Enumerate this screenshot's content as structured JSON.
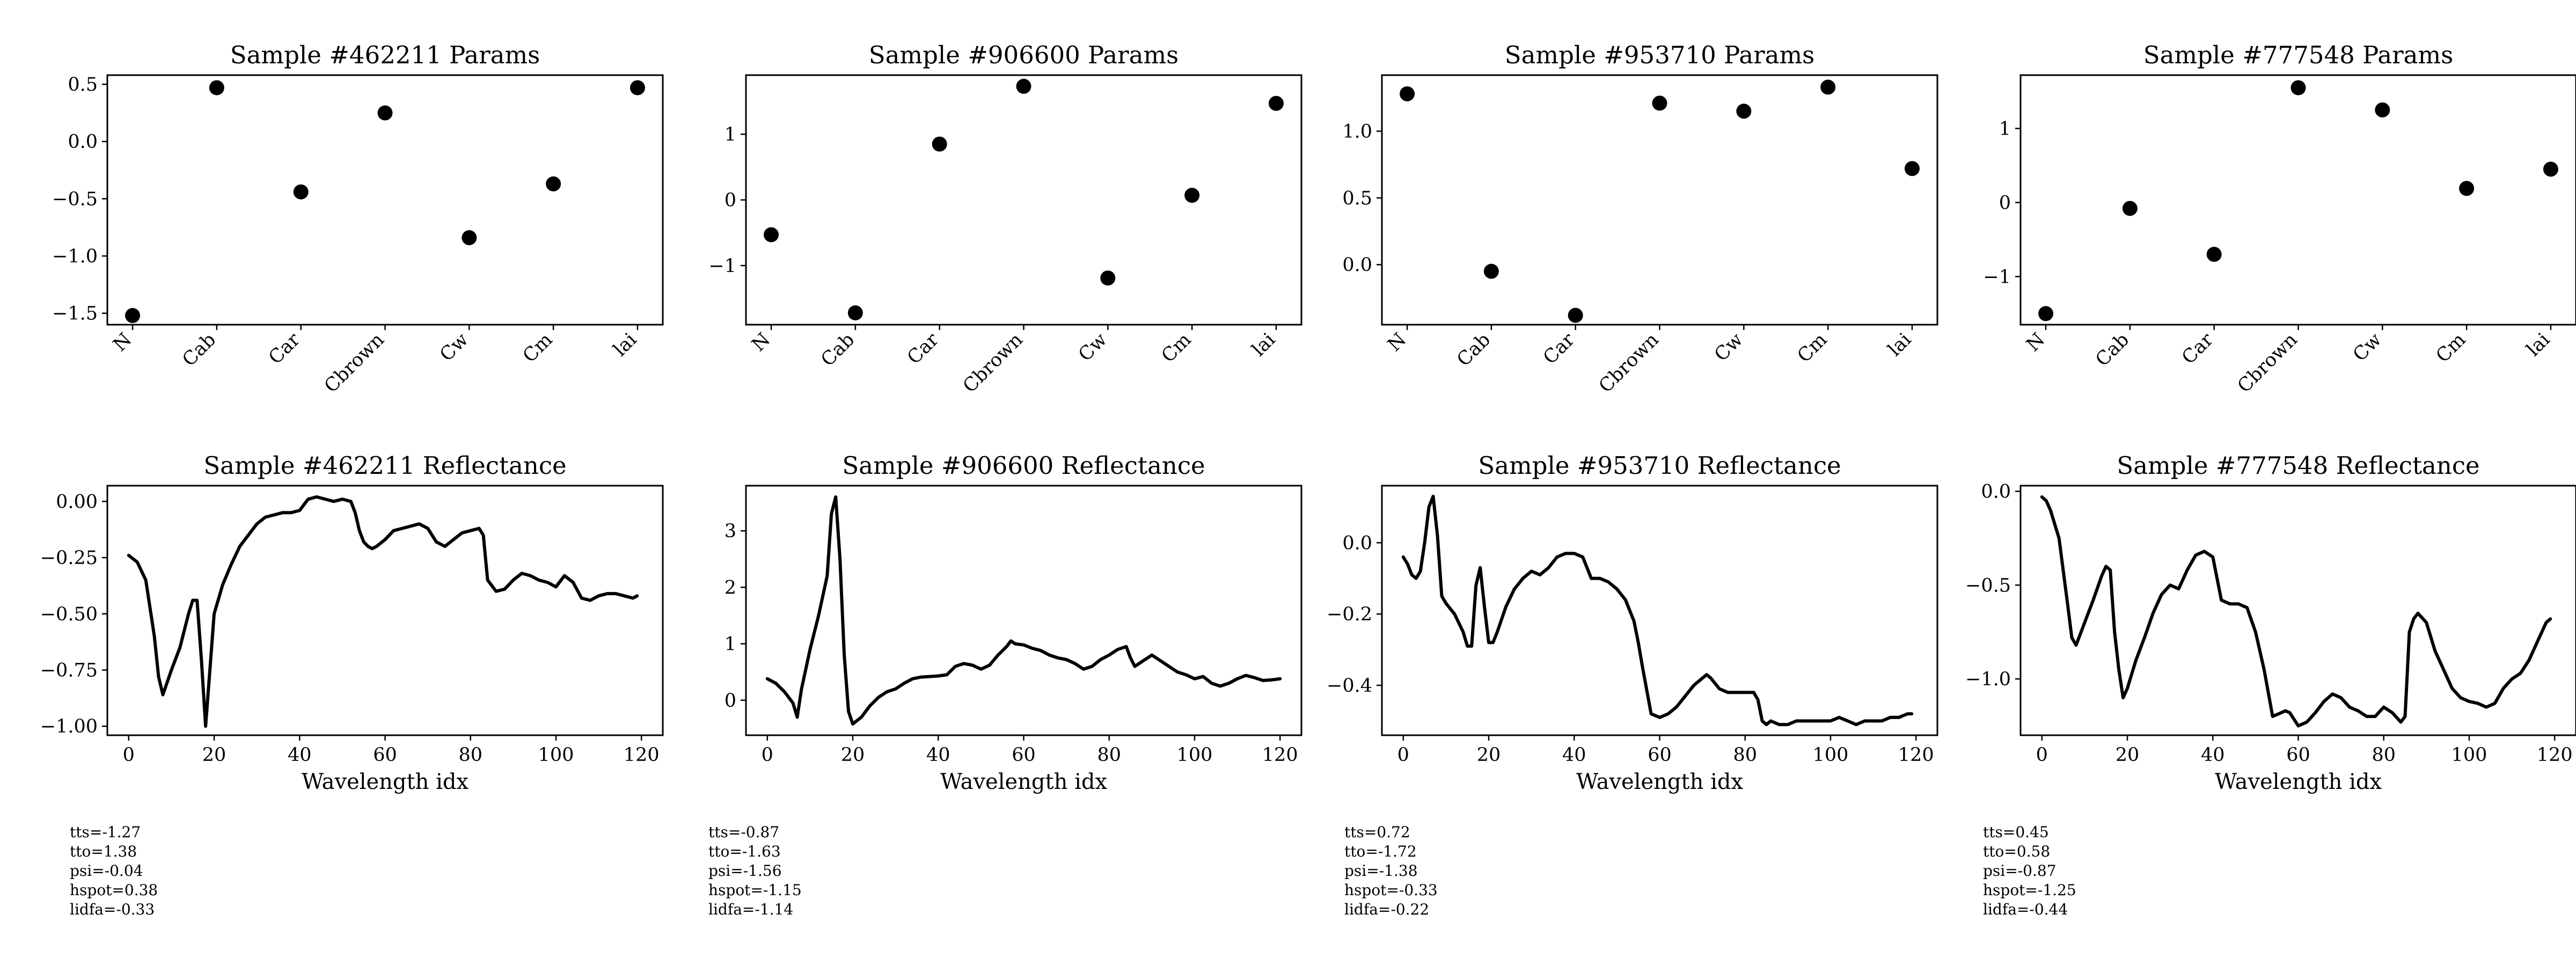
{
  "figure": {
    "params_xlabels": [
      "N",
      "Cab",
      "Car",
      "Cbrown",
      "Cw",
      "Cm",
      "lai"
    ],
    "reflectance_xlabel": "Wavelength idx",
    "colors": {
      "ink": "#000000",
      "background": "#ffffff"
    }
  },
  "chart_data": [
    {
      "type": "scatter",
      "title": "Sample #462211 Params",
      "categories": [
        "N",
        "Cab",
        "Car",
        "Cbrown",
        "Cw",
        "Cm",
        "lai"
      ],
      "values": [
        -1.52,
        0.47,
        -0.44,
        0.25,
        -0.84,
        -0.37,
        0.47
      ],
      "ylim": [
        -1.6,
        0.58
      ],
      "yticks": [
        0.5,
        0.0,
        -0.5,
        -1.0,
        -1.5
      ],
      "ytick_labels": [
        "0.5",
        "0.0",
        "−0.5",
        "−1.0",
        "−1.5"
      ]
    },
    {
      "type": "scatter",
      "title": "Sample #906600 Params",
      "categories": [
        "N",
        "Cab",
        "Car",
        "Cbrown",
        "Cw",
        "Cm",
        "lai"
      ],
      "values": [
        -0.53,
        -1.72,
        0.85,
        1.73,
        -1.19,
        0.07,
        1.47
      ],
      "ylim": [
        -1.9,
        1.9
      ],
      "yticks": [
        1,
        0,
        -1
      ],
      "ytick_labels": [
        "1",
        "0",
        "−1"
      ]
    },
    {
      "type": "scatter",
      "title": "Sample #953710 Params",
      "categories": [
        "N",
        "Cab",
        "Car",
        "Cbrown",
        "Cw",
        "Cm",
        "lai"
      ],
      "values": [
        1.28,
        -0.05,
        -0.38,
        1.21,
        1.15,
        1.33,
        0.72
      ],
      "ylim": [
        -0.45,
        1.42
      ],
      "yticks": [
        1.0,
        0.5,
        0.0
      ],
      "ytick_labels": [
        "1.0",
        "0.5",
        "0.0"
      ]
    },
    {
      "type": "scatter",
      "title": "Sample #777548 Params",
      "categories": [
        "N",
        "Cab",
        "Car",
        "Cbrown",
        "Cw",
        "Cm",
        "lai"
      ],
      "values": [
        -1.5,
        -0.08,
        -0.7,
        1.55,
        1.25,
        0.19,
        0.45
      ],
      "ylim": [
        -1.65,
        1.72
      ],
      "yticks": [
        1,
        0,
        -1
      ],
      "ytick_labels": [
        "1",
        "0",
        "−1"
      ]
    },
    {
      "type": "line",
      "title": "Sample #462211 Reflectance",
      "xlabel": "Wavelength idx",
      "x": [
        0,
        2,
        4,
        6,
        7,
        8,
        10,
        12,
        14,
        15,
        16,
        17,
        18,
        19,
        20,
        22,
        24,
        26,
        28,
        30,
        32,
        34,
        36,
        38,
        40,
        42,
        44,
        46,
        48,
        50,
        52,
        53,
        54,
        55,
        56,
        57,
        58,
        60,
        62,
        64,
        66,
        68,
        70,
        72,
        74,
        76,
        78,
        80,
        82,
        83,
        84,
        86,
        88,
        90,
        92,
        94,
        96,
        98,
        100,
        102,
        104,
        106,
        108,
        110,
        112,
        114,
        116,
        118,
        119
      ],
      "y": [
        -0.24,
        -0.27,
        -0.35,
        -0.6,
        -0.78,
        -0.86,
        -0.75,
        -0.65,
        -0.5,
        -0.44,
        -0.44,
        -0.7,
        -1.0,
        -0.75,
        -0.5,
        -0.37,
        -0.28,
        -0.2,
        -0.15,
        -0.1,
        -0.07,
        -0.06,
        -0.05,
        -0.05,
        -0.04,
        0.01,
        0.02,
        0.01,
        0.0,
        0.01,
        0.0,
        -0.05,
        -0.13,
        -0.18,
        -0.2,
        -0.21,
        -0.2,
        -0.17,
        -0.13,
        -0.12,
        -0.11,
        -0.1,
        -0.12,
        -0.18,
        -0.2,
        -0.17,
        -0.14,
        -0.13,
        -0.12,
        -0.15,
        -0.35,
        -0.4,
        -0.39,
        -0.35,
        -0.32,
        -0.33,
        -0.35,
        -0.36,
        -0.38,
        -0.33,
        -0.36,
        -0.43,
        -0.44,
        -0.42,
        -0.41,
        -0.41,
        -0.42,
        -0.43,
        -0.42
      ],
      "xlim": [
        -5,
        125
      ],
      "ylim": [
        -1.04,
        0.07
      ],
      "xticks": [
        0,
        20,
        40,
        60,
        80,
        100,
        120
      ],
      "xtick_labels": [
        "0",
        "20",
        "40",
        "60",
        "80",
        "100",
        "120"
      ],
      "yticks": [
        0.0,
        -0.25,
        -0.5,
        -0.75,
        -1.0
      ],
      "ytick_labels": [
        "0.00",
        "−0.25",
        "−0.50",
        "−0.75",
        "−1.00"
      ],
      "annotation": [
        "tts=-1.27",
        "tto=1.38",
        "psi=-0.04",
        "hspot=0.38",
        "lidfa=-0.33"
      ]
    },
    {
      "type": "line",
      "title": "Sample #906600 Reflectance",
      "xlabel": "Wavelength idx",
      "x": [
        0,
        2,
        4,
        6,
        7,
        8,
        10,
        12,
        14,
        15,
        16,
        17,
        18,
        19,
        20,
        22,
        24,
        26,
        28,
        30,
        32,
        34,
        36,
        38,
        40,
        42,
        44,
        46,
        48,
        50,
        52,
        54,
        56,
        57,
        58,
        60,
        62,
        64,
        66,
        68,
        70,
        72,
        74,
        76,
        78,
        80,
        82,
        84,
        85,
        86,
        88,
        90,
        92,
        94,
        96,
        98,
        100,
        102,
        104,
        106,
        108,
        110,
        112,
        114,
        116,
        118,
        120
      ],
      "y": [
        0.38,
        0.3,
        0.15,
        -0.05,
        -0.3,
        0.2,
        0.9,
        1.5,
        2.2,
        3.3,
        3.6,
        2.5,
        0.8,
        -0.2,
        -0.42,
        -0.3,
        -0.1,
        0.05,
        0.15,
        0.2,
        0.3,
        0.38,
        0.41,
        0.42,
        0.43,
        0.45,
        0.6,
        0.65,
        0.62,
        0.55,
        0.62,
        0.8,
        0.95,
        1.05,
        1.0,
        0.98,
        0.92,
        0.88,
        0.8,
        0.75,
        0.72,
        0.65,
        0.55,
        0.6,
        0.72,
        0.8,
        0.9,
        0.95,
        0.75,
        0.6,
        0.7,
        0.8,
        0.7,
        0.6,
        0.5,
        0.45,
        0.38,
        0.42,
        0.3,
        0.25,
        0.3,
        0.38,
        0.44,
        0.4,
        0.35,
        0.36,
        0.38
      ],
      "xlim": [
        -5,
        125
      ],
      "ylim": [
        -0.62,
        3.8
      ],
      "xticks": [
        0,
        20,
        40,
        60,
        80,
        100,
        120
      ],
      "xtick_labels": [
        "0",
        "20",
        "40",
        "60",
        "80",
        "100",
        "120"
      ],
      "yticks": [
        3,
        2,
        1,
        0
      ],
      "ytick_labels": [
        "3",
        "2",
        "1",
        "0"
      ],
      "annotation": [
        "tts=-0.87",
        "tto=-1.63",
        "psi=-1.56",
        "hspot=-1.15",
        "lidfa=-1.14"
      ]
    },
    {
      "type": "line",
      "title": "Sample #953710 Reflectance",
      "xlabel": "Wavelength idx",
      "x": [
        0,
        1,
        2,
        3,
        4,
        5,
        6,
        7,
        8,
        9,
        10,
        12,
        14,
        15,
        16,
        17,
        18,
        19,
        20,
        21,
        22,
        24,
        26,
        28,
        30,
        32,
        34,
        36,
        38,
        40,
        42,
        44,
        46,
        48,
        50,
        52,
        54,
        55,
        56,
        58,
        60,
        62,
        64,
        66,
        68,
        70,
        71,
        72,
        74,
        76,
        78,
        80,
        82,
        83,
        84,
        85,
        86,
        88,
        90,
        92,
        94,
        96,
        98,
        100,
        102,
        104,
        106,
        108,
        110,
        112,
        114,
        116,
        118,
        119
      ],
      "y": [
        -0.04,
        -0.06,
        -0.09,
        -0.1,
        -0.08,
        0.0,
        0.1,
        0.13,
        0.02,
        -0.15,
        -0.17,
        -0.2,
        -0.25,
        -0.29,
        -0.29,
        -0.12,
        -0.07,
        -0.18,
        -0.28,
        -0.28,
        -0.25,
        -0.18,
        -0.13,
        -0.1,
        -0.08,
        -0.09,
        -0.07,
        -0.04,
        -0.03,
        -0.03,
        -0.04,
        -0.1,
        -0.1,
        -0.11,
        -0.13,
        -0.16,
        -0.22,
        -0.28,
        -0.35,
        -0.48,
        -0.49,
        -0.48,
        -0.46,
        -0.43,
        -0.4,
        -0.38,
        -0.37,
        -0.38,
        -0.41,
        -0.42,
        -0.42,
        -0.42,
        -0.42,
        -0.44,
        -0.5,
        -0.51,
        -0.5,
        -0.51,
        -0.51,
        -0.5,
        -0.5,
        -0.5,
        -0.5,
        -0.5,
        -0.49,
        -0.5,
        -0.51,
        -0.5,
        -0.5,
        -0.5,
        -0.49,
        -0.49,
        -0.48,
        -0.48
      ],
      "xlim": [
        -5,
        125
      ],
      "ylim": [
        -0.54,
        0.16
      ],
      "xticks": [
        0,
        20,
        40,
        60,
        80,
        100,
        120
      ],
      "xtick_labels": [
        "0",
        "20",
        "40",
        "60",
        "80",
        "100",
        "120"
      ],
      "yticks": [
        0.0,
        -0.2,
        -0.4
      ],
      "ytick_labels": [
        "0.0",
        "−0.2",
        "−0.4"
      ],
      "annotation": [
        "tts=0.72",
        "tto=-1.72",
        "psi=-1.38",
        "hspot=-0.33",
        "lidfa=-0.22"
      ]
    },
    {
      "type": "line",
      "title": "Sample #777548 Reflectance",
      "xlabel": "Wavelength idx",
      "x": [
        0,
        1,
        2,
        4,
        6,
        7,
        8,
        10,
        12,
        14,
        15,
        16,
        17,
        18,
        19,
        20,
        22,
        24,
        26,
        28,
        30,
        32,
        34,
        36,
        38,
        40,
        42,
        44,
        46,
        48,
        50,
        52,
        54,
        56,
        57,
        58,
        60,
        62,
        64,
        66,
        68,
        70,
        72,
        74,
        76,
        78,
        80,
        82,
        84,
        85,
        86,
        87,
        88,
        90,
        92,
        94,
        96,
        98,
        100,
        102,
        104,
        106,
        108,
        110,
        112,
        114,
        116,
        118,
        119
      ],
      "y": [
        -0.03,
        -0.05,
        -0.1,
        -0.25,
        -0.6,
        -0.78,
        -0.82,
        -0.7,
        -0.58,
        -0.45,
        -0.4,
        -0.42,
        -0.75,
        -0.95,
        -1.1,
        -1.05,
        -0.9,
        -0.78,
        -0.65,
        -0.55,
        -0.5,
        -0.52,
        -0.42,
        -0.34,
        -0.32,
        -0.35,
        -0.58,
        -0.6,
        -0.6,
        -0.62,
        -0.75,
        -0.95,
        -1.2,
        -1.18,
        -1.17,
        -1.18,
        -1.25,
        -1.23,
        -1.18,
        -1.12,
        -1.08,
        -1.1,
        -1.15,
        -1.17,
        -1.2,
        -1.2,
        -1.15,
        -1.18,
        -1.23,
        -1.2,
        -0.75,
        -0.68,
        -0.65,
        -0.7,
        -0.85,
        -0.95,
        -1.05,
        -1.1,
        -1.12,
        -1.13,
        -1.15,
        -1.13,
        -1.05,
        -1.0,
        -0.97,
        -0.9,
        -0.8,
        -0.7,
        -0.68
      ],
      "xlim": [
        -5,
        125
      ],
      "ylim": [
        -1.3,
        0.03
      ],
      "xticks": [
        0,
        20,
        40,
        60,
        80,
        100,
        120
      ],
      "xtick_labels": [
        "0",
        "20",
        "40",
        "60",
        "80",
        "100",
        "120"
      ],
      "yticks": [
        0.0,
        -0.5,
        -1.0
      ],
      "ytick_labels": [
        "0.0",
        "−0.5",
        "−1.0"
      ],
      "annotation": [
        "tts=0.45",
        "tto=0.58",
        "psi=-0.87",
        "hspot=-1.25",
        "lidfa=-0.44"
      ]
    }
  ]
}
